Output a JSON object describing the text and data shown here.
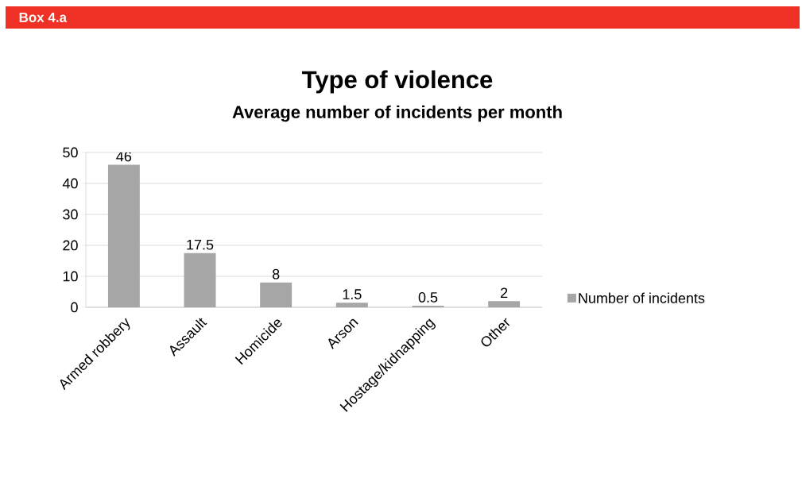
{
  "chart_data": {
    "type": "bar",
    "title": "Type of violence",
    "subtitle": "Average number of incidents per month",
    "annotations": [
      "Box 4.a"
    ],
    "categories": [
      "Armed robbery",
      "Assault",
      "Homicide",
      "Arson",
      "Hostage/kidnapping",
      "Other"
    ],
    "series": [
      {
        "name": "Number of incidents",
        "color": "#a6a6a6",
        "values": [
          46,
          17.5,
          8,
          1.5,
          0.5,
          2
        ]
      }
    ],
    "ylim": [
      0,
      50
    ],
    "yticks": [
      0,
      10,
      20,
      30,
      40,
      50
    ],
    "grid": "y",
    "legend": "right",
    "data_labels": true
  }
}
